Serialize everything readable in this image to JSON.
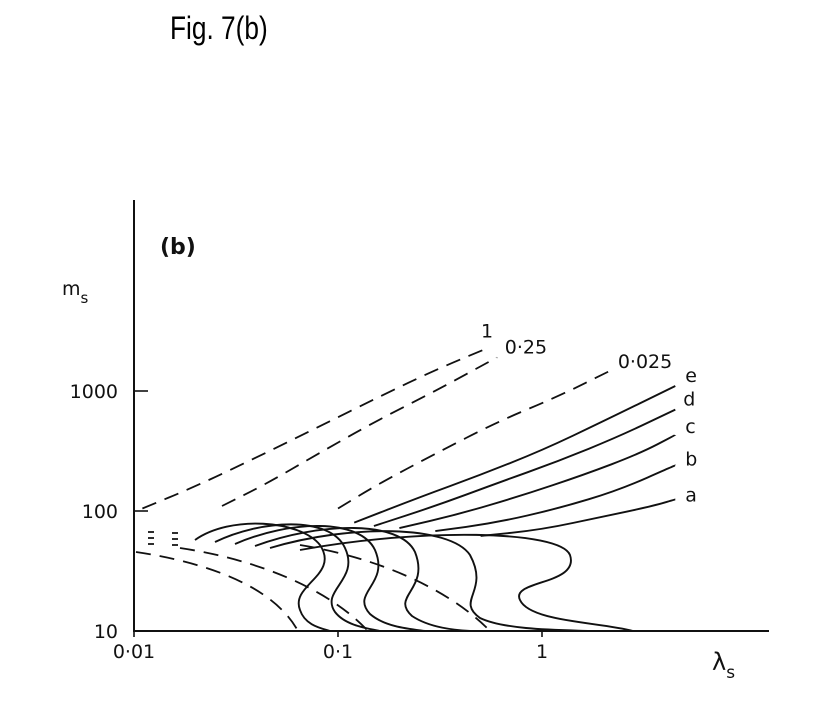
{
  "figure_caption": "Fig. 7(b)",
  "chart_data": {
    "type": "line",
    "panel_label": "(b)",
    "xlabel": "λ",
    "xlabel_sub": "s",
    "ylabel": "m",
    "ylabel_sub": "s",
    "x_scale": "log",
    "y_scale": "log",
    "xlim": [
      0.01,
      10
    ],
    "ylim": [
      10,
      10000
    ],
    "x_ticks": [
      0.01,
      0.1,
      1
    ],
    "x_tick_labels": [
      "0·01",
      "0·1",
      "1"
    ],
    "y_ticks": [
      10,
      100,
      1000
    ],
    "y_tick_labels": [
      "10",
      "100",
      "1000"
    ],
    "grid": false,
    "legend": "none",
    "series": [
      {
        "name": "1",
        "style": "dashed",
        "x": [
          0.011,
          0.02,
          0.04,
          0.08,
          0.16,
          0.3,
          0.55
        ],
        "y": [
          105,
          160,
          280,
          500,
          900,
          1500,
          2300
        ]
      },
      {
        "name": "0·25",
        "style": "dashed",
        "x": [
          0.027,
          0.045,
          0.08,
          0.15,
          0.3,
          0.6
        ],
        "y": [
          110,
          170,
          300,
          550,
          1000,
          1900
        ]
      },
      {
        "name": "0·025",
        "style": "dashed",
        "x": [
          0.1,
          0.16,
          0.3,
          0.6,
          1.2,
          2.2
        ],
        "y": [
          105,
          170,
          300,
          550,
          900,
          1500
        ]
      },
      {
        "name": "e",
        "style": "solid",
        "x": [
          0.12,
          0.25,
          0.5,
          1,
          2,
          4.5
        ],
        "y": [
          80,
          130,
          200,
          320,
          560,
          1100
        ]
      },
      {
        "name": "d",
        "style": "solid",
        "x": [
          0.15,
          0.3,
          0.6,
          1.2,
          2.4,
          4.5
        ],
        "y": [
          75,
          110,
          170,
          260,
          420,
          700
        ]
      },
      {
        "name": "c",
        "style": "solid",
        "x": [
          0.2,
          0.4,
          0.8,
          1.6,
          3,
          4.5
        ],
        "y": [
          72,
          95,
          135,
          200,
          300,
          430
        ]
      },
      {
        "name": "b",
        "style": "solid",
        "x": [
          0.3,
          0.6,
          1.2,
          2.4,
          4.5
        ],
        "y": [
          68,
          80,
          105,
          150,
          240
        ]
      },
      {
        "name": "a",
        "style": "solid",
        "x": [
          0.5,
          1,
          2,
          3.5,
          4.5
        ],
        "y": [
          62,
          70,
          90,
          110,
          125
        ]
      }
    ]
  }
}
